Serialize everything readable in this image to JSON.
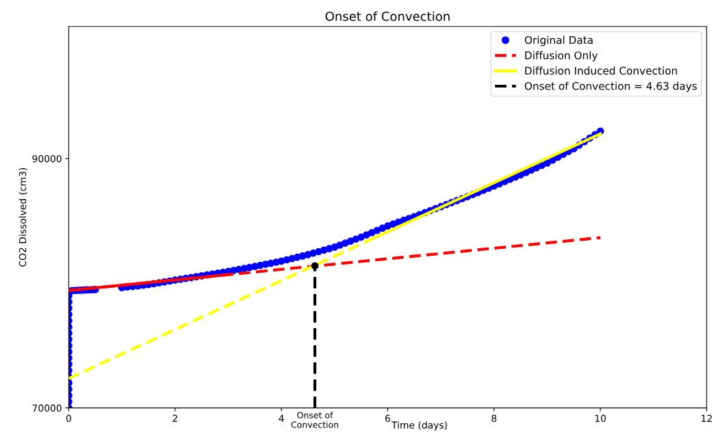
{
  "chart_data": {
    "type": "scatter",
    "title": "Onset of Convection",
    "xlabel": "Time (days)",
    "ylabel": "CO2 Dissolved (cm3)",
    "xlim": [
      0,
      12
    ],
    "xticks": [
      0,
      2,
      4,
      6,
      8,
      10,
      12
    ],
    "ylim": [
      70000,
      100600
    ],
    "yticks": [
      70000,
      90000
    ],
    "grid": false,
    "legend": "top right",
    "series": [
      {
        "name": "Original Data",
        "color": "#0000ff",
        "marker": "circle",
        "x": [
          0,
          0,
          0,
          0,
          0,
          0,
          0,
          0,
          0,
          0,
          0,
          0,
          0,
          0,
          0,
          0,
          0,
          0,
          0,
          0.05,
          0.1,
          0.15,
          0.2,
          0.25,
          0.3,
          0.35,
          0.4,
          0.45,
          0.5,
          1,
          1.1,
          1.2,
          1.3,
          1.4,
          1.5,
          1.6,
          1.7,
          1.8,
          1.9,
          2,
          2.1,
          2.2,
          2.3,
          2.4,
          2.5,
          2.6,
          2.7,
          2.8,
          2.9,
          3,
          3.1,
          3.2,
          3.3,
          3.4,
          3.5,
          3.6,
          3.7,
          3.8,
          3.9,
          4,
          4.1,
          4.2,
          4.3,
          4.4,
          4.5,
          4.6,
          4.7,
          4.8,
          4.9,
          5,
          5.1,
          5.2,
          5.3,
          5.4,
          5.5,
          5.6,
          5.7,
          5.8,
          5.9,
          6,
          6.1,
          6.2,
          6.3,
          6.4,
          6.5,
          6.6,
          6.7,
          6.8,
          6.9,
          7,
          7.1,
          7.2,
          7.3,
          7.4,
          7.5,
          7.6,
          7.7,
          7.8,
          7.9,
          8,
          8.1,
          8.2,
          8.3,
          8.4,
          8.5,
          8.6,
          8.7,
          8.8,
          8.9,
          9,
          9.1,
          9.2,
          9.3,
          9.4,
          9.5,
          9.6,
          9.7,
          9.8,
          9.9,
          10
        ],
        "values": [
          70000,
          70500,
          71000,
          71500,
          72000,
          72500,
          73000,
          73500,
          74000,
          74500,
          75000,
          75500,
          76000,
          76500,
          77000,
          77500,
          78000,
          78500,
          79000,
          79400,
          79420,
          79430,
          79440,
          79450,
          79460,
          79470,
          79480,
          79490,
          79500,
          79650,
          79700,
          79740,
          79790,
          79840,
          79900,
          79970,
          80040,
          80110,
          80180,
          80260,
          80320,
          80390,
          80460,
          80530,
          80600,
          80670,
          80740,
          80810,
          80880,
          80950,
          81030,
          81110,
          81190,
          81270,
          81350,
          81430,
          81520,
          81600,
          81690,
          81780,
          81880,
          81980,
          82090,
          82190,
          82300,
          82420,
          82540,
          82660,
          82780,
          82900,
          83060,
          83220,
          83380,
          83540,
          83700,
          83880,
          84060,
          84240,
          84420,
          84600,
          84750,
          84900,
          85050,
          85200,
          85350,
          85510,
          85670,
          85830,
          85990,
          86150,
          86310,
          86470,
          86630,
          86790,
          86950,
          87120,
          87290,
          87460,
          87630,
          87800,
          87980,
          88160,
          88340,
          88520,
          88700,
          88890,
          89080,
          89270,
          89460,
          89650,
          89880,
          90110,
          90340,
          90570,
          90800,
          91080,
          91360,
          91640,
          91920,
          92200
        ]
      },
      {
        "name": "Diffusion Only",
        "type": "line",
        "color": "#ff0000",
        "line_style": "dashed",
        "x": [
          0,
          10
        ],
        "values": [
          79420,
          83660
        ]
      },
      {
        "type": "line",
        "color": "#ff0000",
        "line_style": "solid",
        "x": [
          0,
          3
        ],
        "values": [
          79420,
          80690
        ]
      },
      {
        "type": "line",
        "color": "#ffff00",
        "line_style": "dashed",
        "x": [
          0,
          5.6
        ],
        "values": [
          72360,
          83350
        ]
      },
      {
        "name": "Diffusion Induced Convection",
        "type": "line",
        "color": "#ffff00",
        "line_style": "solid",
        "x": [
          5.6,
          10
        ],
        "values": [
          83350,
          91990
        ]
      },
      {
        "name": "Onset of Convection = 4.63 days",
        "type": "line",
        "color": "#000000",
        "line_style": "dashed",
        "x": [
          4.63,
          4.63
        ],
        "values": [
          70000,
          81400
        ]
      },
      {
        "color": "#000000",
        "marker": "circle",
        "x": [
          4.63
        ],
        "values": [
          81400
        ]
      }
    ],
    "annotations": [
      {
        "text": "Onset of\nConvection",
        "x": 4.63,
        "y": 70000
      }
    ]
  }
}
